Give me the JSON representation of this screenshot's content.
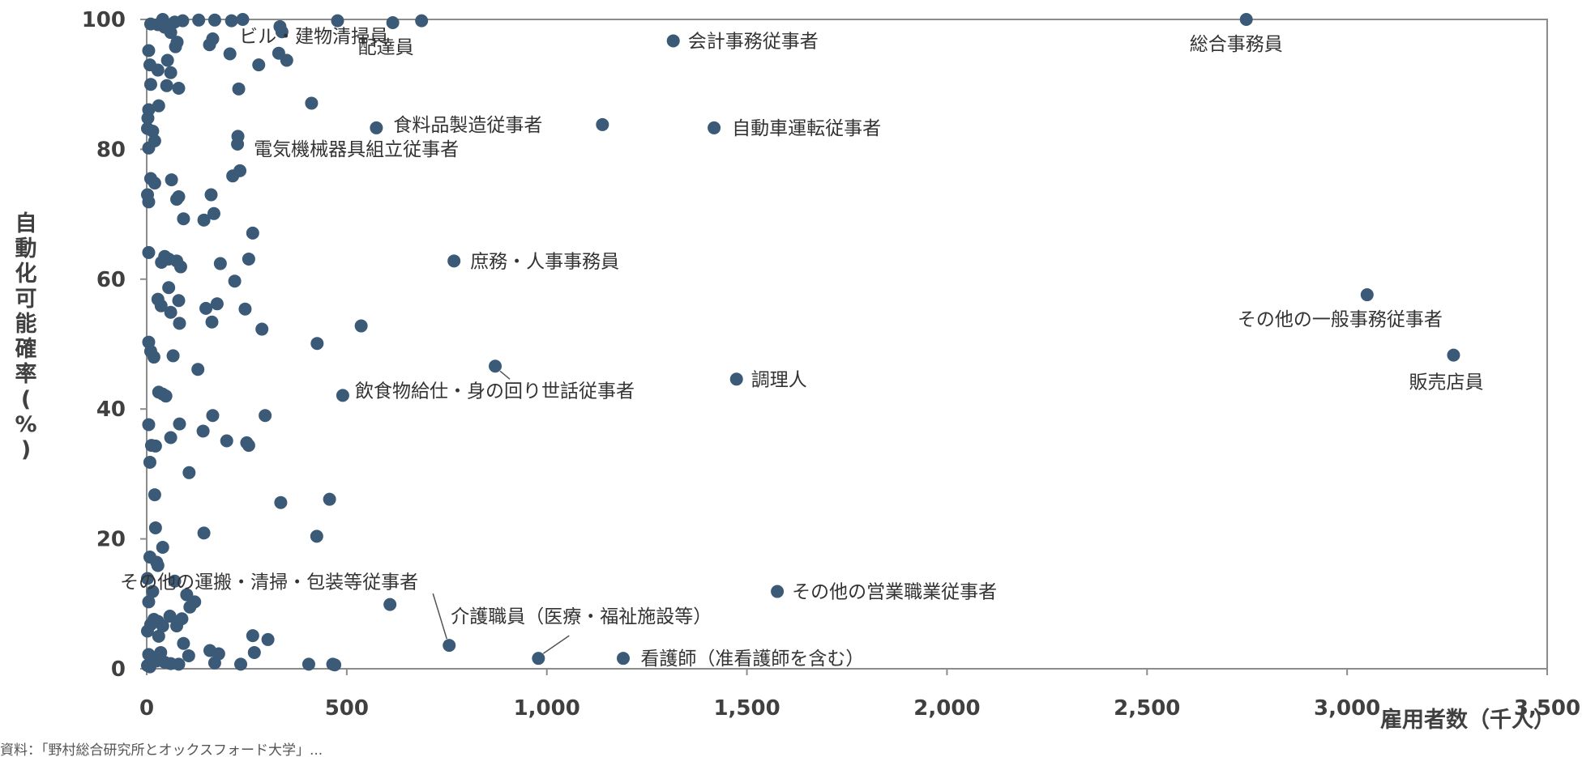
{
  "chart_data": {
    "type": "scatter",
    "title": "",
    "xlabel": "雇用者数（千人）",
    "ylabel": "自動化可能確率（%）",
    "xlim": [
      0,
      3500
    ],
    "ylim": [
      0,
      100
    ],
    "x_ticks": [
      0,
      500,
      1000,
      1500,
      2000,
      2500,
      3000,
      3500
    ],
    "x_tick_labels": [
      "0",
      "500",
      "1,000",
      "1,500",
      "2,000",
      "2,500",
      "3,000",
      "3,500"
    ],
    "y_ticks": [
      0,
      20,
      40,
      60,
      80,
      100
    ],
    "y_tick_labels": [
      "0",
      "20",
      "40",
      "60",
      "80",
      "100"
    ],
    "grid": false,
    "marker_color": "#3a5a78",
    "points": [
      {
        "x": 2748,
        "y": 100,
        "label": "総合事務員"
      },
      {
        "x": 1316,
        "y": 96.7,
        "label": "会計事務従事者"
      },
      {
        "x": 615,
        "y": 99.5,
        "label": "配達員"
      },
      {
        "x": 687,
        "y": 99.8,
        "label": "ビル・建物清掃員"
      },
      {
        "x": 1139,
        "y": 83.8,
        "label": "食料品製造従事者"
      },
      {
        "x": 1418,
        "y": 83.3,
        "label": "自動車運転従事者"
      },
      {
        "x": 227,
        "y": 80.8,
        "label": "電気機械器具組立従事者"
      },
      {
        "x": 768,
        "y": 62.8,
        "label": "庶務・人事事務員"
      },
      {
        "x": 3050,
        "y": 57.6,
        "label": "その他の一般事務従事者"
      },
      {
        "x": 3266,
        "y": 48.3,
        "label": "販売店員"
      },
      {
        "x": 871,
        "y": 46.6,
        "label": "飲食物給仕・身の回り世話従事者"
      },
      {
        "x": 1474,
        "y": 44.6,
        "label": "調理人"
      },
      {
        "x": 608,
        "y": 9.9,
        "label": "その他の運搬・清掃・包装等従事者"
      },
      {
        "x": 1576,
        "y": 11.9,
        "label": "その他の営業職業従事者"
      },
      {
        "x": 756,
        "y": 3.6,
        "label": "介護職員（医療・福祉施設等）"
      },
      {
        "x": 979,
        "y": 1.6,
        "label": "看護師（准看護師を含む）"
      },
      {
        "x": 1191,
        "y": 1.6,
        "label": ""
      },
      {
        "x": 477,
        "y": 99.8
      },
      {
        "x": 333,
        "y": 98.9
      },
      {
        "x": 338,
        "y": 98.1
      },
      {
        "x": 240,
        "y": 100
      },
      {
        "x": 212,
        "y": 99.8
      },
      {
        "x": 170,
        "y": 99.9
      },
      {
        "x": 130,
        "y": 99.9
      },
      {
        "x": 90,
        "y": 99.8
      },
      {
        "x": 70,
        "y": 99.6
      },
      {
        "x": 40,
        "y": 100
      },
      {
        "x": 28,
        "y": 99.2
      },
      {
        "x": 10,
        "y": 99.3
      },
      {
        "x": 45,
        "y": 98.8
      },
      {
        "x": 60,
        "y": 98.0
      },
      {
        "x": 412,
        "y": 87.1
      },
      {
        "x": 230,
        "y": 89.3
      },
      {
        "x": 280,
        "y": 93.0
      },
      {
        "x": 350,
        "y": 93.7
      },
      {
        "x": 330,
        "y": 94.8
      },
      {
        "x": 208,
        "y": 94.7
      },
      {
        "x": 157,
        "y": 96.1
      },
      {
        "x": 165,
        "y": 97.0
      },
      {
        "x": 76,
        "y": 96.5
      },
      {
        "x": 5,
        "y": 95.2
      },
      {
        "x": 72,
        "y": 95.8
      },
      {
        "x": 52,
        "y": 93.7
      },
      {
        "x": 60,
        "y": 91.8
      },
      {
        "x": 8,
        "y": 93.0
      },
      {
        "x": 28,
        "y": 92.2
      },
      {
        "x": 50,
        "y": 89.8
      },
      {
        "x": 80,
        "y": 89.4
      },
      {
        "x": 10,
        "y": 90.0
      },
      {
        "x": 30,
        "y": 86.7
      },
      {
        "x": 5,
        "y": 86.1
      },
      {
        "x": 3,
        "y": 84.8
      },
      {
        "x": 2,
        "y": 83.2
      },
      {
        "x": 15,
        "y": 82.8
      },
      {
        "x": 20,
        "y": 81.3
      },
      {
        "x": 228,
        "y": 82.0
      },
      {
        "x": 574,
        "y": 83.3
      },
      {
        "x": 5,
        "y": 80.2
      },
      {
        "x": 233,
        "y": 76.7
      },
      {
        "x": 215,
        "y": 75.9
      },
      {
        "x": 10,
        "y": 75.5
      },
      {
        "x": 20,
        "y": 74.8
      },
      {
        "x": 62,
        "y": 75.3
      },
      {
        "x": 2,
        "y": 73.0
      },
      {
        "x": 5,
        "y": 71.9
      },
      {
        "x": 75,
        "y": 72.3
      },
      {
        "x": 80,
        "y": 72.7
      },
      {
        "x": 161,
        "y": 73.0
      },
      {
        "x": 168,
        "y": 70.1
      },
      {
        "x": 92,
        "y": 69.3
      },
      {
        "x": 143,
        "y": 69.1
      },
      {
        "x": 265,
        "y": 67.1
      },
      {
        "x": 5,
        "y": 64.1
      },
      {
        "x": 45,
        "y": 63.5
      },
      {
        "x": 55,
        "y": 63.1
      },
      {
        "x": 75,
        "y": 62.8
      },
      {
        "x": 85,
        "y": 61.9
      },
      {
        "x": 37,
        "y": 62.6
      },
      {
        "x": 184,
        "y": 62.4
      },
      {
        "x": 255,
        "y": 63.1
      },
      {
        "x": 220,
        "y": 59.7
      },
      {
        "x": 55,
        "y": 58.7
      },
      {
        "x": 28,
        "y": 56.9
      },
      {
        "x": 36,
        "y": 55.9
      },
      {
        "x": 60,
        "y": 54.9
      },
      {
        "x": 80,
        "y": 56.7
      },
      {
        "x": 176,
        "y": 56.2
      },
      {
        "x": 148,
        "y": 55.5
      },
      {
        "x": 246,
        "y": 55.4
      },
      {
        "x": 163,
        "y": 53.4
      },
      {
        "x": 82,
        "y": 53.2
      },
      {
        "x": 536,
        "y": 52.8
      },
      {
        "x": 288,
        "y": 52.3
      },
      {
        "x": 5,
        "y": 50.3
      },
      {
        "x": 426,
        "y": 50.1
      },
      {
        "x": 10,
        "y": 48.9
      },
      {
        "x": 18,
        "y": 48.0
      },
      {
        "x": 66,
        "y": 48.2
      },
      {
        "x": 128,
        "y": 46.1
      },
      {
        "x": 490,
        "y": 42.1
      },
      {
        "x": 30,
        "y": 42.6
      },
      {
        "x": 40,
        "y": 42.3
      },
      {
        "x": 48,
        "y": 42.0
      },
      {
        "x": 5,
        "y": 37.6
      },
      {
        "x": 82,
        "y": 37.7
      },
      {
        "x": 165,
        "y": 39.0
      },
      {
        "x": 296,
        "y": 39.0
      },
      {
        "x": 141,
        "y": 36.6
      },
      {
        "x": 60,
        "y": 35.6
      },
      {
        "x": 200,
        "y": 35.1
      },
      {
        "x": 250,
        "y": 34.8
      },
      {
        "x": 255,
        "y": 34.4
      },
      {
        "x": 12,
        "y": 34.4
      },
      {
        "x": 22,
        "y": 34.3
      },
      {
        "x": 8,
        "y": 31.8
      },
      {
        "x": 106,
        "y": 30.2
      },
      {
        "x": 20,
        "y": 26.8
      },
      {
        "x": 335,
        "y": 25.6
      },
      {
        "x": 457,
        "y": 26.1
      },
      {
        "x": 22,
        "y": 21.7
      },
      {
        "x": 143,
        "y": 20.9
      },
      {
        "x": 425,
        "y": 20.4
      },
      {
        "x": 40,
        "y": 18.7
      },
      {
        "x": 8,
        "y": 17.2
      },
      {
        "x": 25,
        "y": 16.4
      },
      {
        "x": 28,
        "y": 15.9
      },
      {
        "x": 2,
        "y": 13.9
      },
      {
        "x": 70,
        "y": 13.5
      },
      {
        "x": 15,
        "y": 11.9
      },
      {
        "x": 100,
        "y": 11.4
      },
      {
        "x": 120,
        "y": 10.3
      },
      {
        "x": 5,
        "y": 10.3
      },
      {
        "x": 108,
        "y": 9.5
      },
      {
        "x": 58,
        "y": 8.1
      },
      {
        "x": 18,
        "y": 7.6
      },
      {
        "x": 28,
        "y": 7.3
      },
      {
        "x": 88,
        "y": 7.7
      },
      {
        "x": 75,
        "y": 6.6
      },
      {
        "x": 40,
        "y": 6.6
      },
      {
        "x": 2,
        "y": 5.8
      },
      {
        "x": 10,
        "y": 6.8
      },
      {
        "x": 30,
        "y": 5.0
      },
      {
        "x": 265,
        "y": 5.1
      },
      {
        "x": 303,
        "y": 4.5
      },
      {
        "x": 92,
        "y": 3.9
      },
      {
        "x": 158,
        "y": 2.8
      },
      {
        "x": 180,
        "y": 2.3
      },
      {
        "x": 269,
        "y": 2.5
      },
      {
        "x": 5,
        "y": 2.2
      },
      {
        "x": 35,
        "y": 2.5
      },
      {
        "x": 105,
        "y": 2.0
      },
      {
        "x": 15,
        "y": 1.4
      },
      {
        "x": 25,
        "y": 1.2
      },
      {
        "x": 45,
        "y": 1.0
      },
      {
        "x": 60,
        "y": 0.8
      },
      {
        "x": 80,
        "y": 0.7
      },
      {
        "x": 170,
        "y": 0.9
      },
      {
        "x": 235,
        "y": 0.7
      },
      {
        "x": 405,
        "y": 0.7
      },
      {
        "x": 465,
        "y": 0.7
      },
      {
        "x": 470,
        "y": 0.6
      },
      {
        "x": 2,
        "y": 0.5
      },
      {
        "x": 8,
        "y": 0.3
      }
    ]
  },
  "footnote": "資料：「野村総合研究所とオックスフォード大学」..."
}
